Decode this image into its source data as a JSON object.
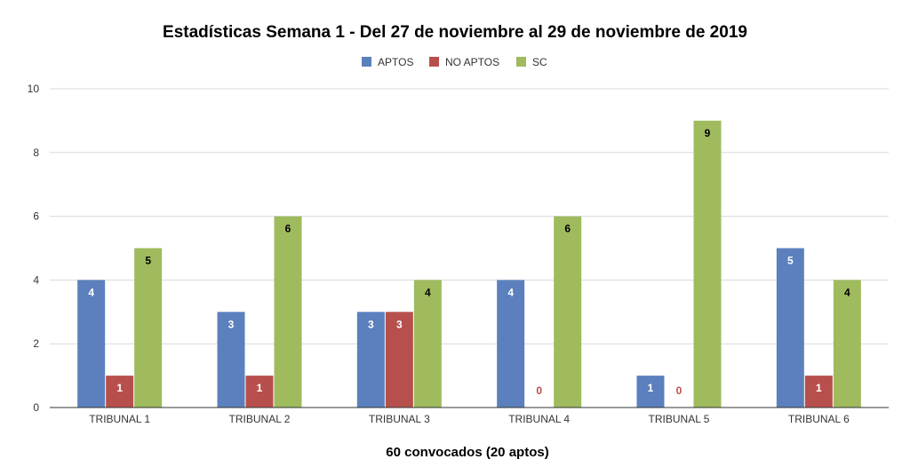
{
  "chart_data": {
    "type": "bar",
    "title": "Estadísticas Semana 1 - Del 27 de noviembre al 29 de noviembre de 2019",
    "xlabel": "60 convocados (20 aptos)",
    "ylabel": "",
    "ylim": [
      0,
      10
    ],
    "yticks": [
      0,
      2,
      4,
      6,
      8,
      10
    ],
    "grid": true,
    "legend_position": "top-center",
    "categories": [
      "TRIBUNAL 1",
      "TRIBUNAL 2",
      "TRIBUNAL 3",
      "TRIBUNAL 4",
      "TRIBUNAL 5",
      "TRIBUNAL 6"
    ],
    "series": [
      {
        "name": "APTOS",
        "color": "#5b80bd",
        "label_color": "#ffffff",
        "values": [
          4,
          3,
          3,
          4,
          1,
          5
        ]
      },
      {
        "name": "NO APTOS",
        "color": "#b7504c",
        "label_color": "#ffffff",
        "values": [
          1,
          1,
          3,
          0,
          0,
          1
        ]
      },
      {
        "name": "SC",
        "color": "#9fbb5e",
        "label_color": "#000000",
        "values": [
          5,
          6,
          4,
          6,
          9,
          4
        ]
      }
    ],
    "zero_label_color": "#b7504c"
  }
}
